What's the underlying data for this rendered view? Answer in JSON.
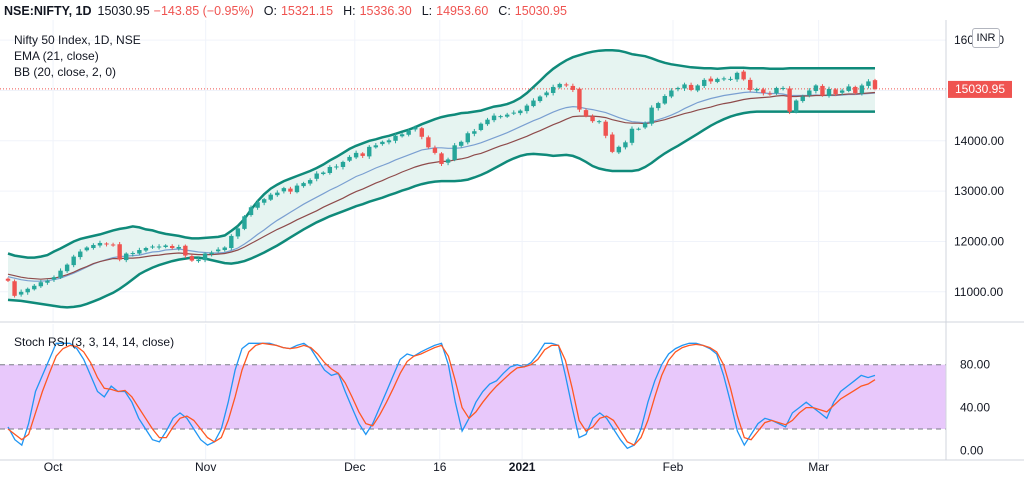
{
  "header": {
    "symbol": "NSE:NIFTY, 1D",
    "last": "15030.95",
    "change": "−143.85 (−0.95%)",
    "o_label": "O:",
    "o": "15321.15",
    "h_label": "H:",
    "h": "15336.30",
    "l_label": "L:",
    "l": "14953.60",
    "c_label": "C:",
    "c": "15030.95"
  },
  "legend": {
    "title": "Nifty 50 Index, 1D, NSE",
    "ema": "EMA (21, close)",
    "bb": "BB (20, close, 2, 0)"
  },
  "stoch_label": "Stoch RSI (3, 3, 14, 14, close)",
  "currency_button": "INR",
  "price_badge": "15030.95",
  "colors": {
    "up": "#26a69a",
    "down": "#ef5350",
    "bb": "#0f8a7a",
    "bb_fill": "#e6f4f1",
    "ema": "#8e4b4b",
    "basis": "#7a9fd1",
    "k": "#2196f3",
    "d": "#ff5722",
    "rsi_band": "#e8c8fb"
  },
  "chart_data": [
    {
      "type": "candlestick",
      "title": "Nifty 50 Index, 1D, NSE",
      "ylim": [
        10400,
        16400
      ],
      "yticks": [
        "11000.00",
        "12000.00",
        "13000.00",
        "14000.00",
        "15000.00",
        "16000.00"
      ],
      "x_labels": [
        "Oct",
        "Nov",
        "Dec",
        "16",
        "2021",
        "Feb",
        "Mar"
      ],
      "last_price": 15030.95,
      "close": [
        11220,
        10920,
        11000,
        11060,
        11120,
        11190,
        11220,
        11290,
        11420,
        11540,
        11700,
        11800,
        11880,
        11930,
        11970,
        11950,
        11920,
        11640,
        11760,
        11770,
        11830,
        11870,
        11900,
        11900,
        11920,
        11870,
        11890,
        11720,
        11620,
        11640,
        11760,
        11780,
        11840,
        11880,
        12110,
        12260,
        12500,
        12680,
        12780,
        12840,
        12930,
        12970,
        13060,
        12990,
        13110,
        13160,
        13220,
        13350,
        13370,
        13480,
        13490,
        13580,
        13680,
        13760,
        13700,
        13880,
        13910,
        13980,
        14010,
        14100,
        14130,
        14200,
        14260,
        14080,
        13870,
        13760,
        13540,
        13630,
        13910,
        13980,
        14150,
        14190,
        14340,
        14420,
        14500,
        14490,
        14520,
        14560,
        14600,
        14700,
        14800,
        14880,
        14960,
        15070,
        15130,
        15100,
        15010,
        14620,
        14490,
        14390,
        14390,
        14100,
        13780,
        13880,
        13970,
        14240,
        14240,
        14350,
        14660,
        14750,
        14890,
        15000,
        15050,
        15120,
        15010,
        15100,
        15210,
        15180,
        15230,
        15240,
        15230,
        15350,
        15220,
        15010,
        15030,
        14950,
        14920,
        15050,
        15050,
        14580,
        14800,
        14880,
        15000,
        15100,
        14900,
        15030,
        14930,
        15000,
        15080,
        14950,
        15100,
        15180,
        15030
      ],
      "ema": [
        11350,
        11320,
        11290,
        11270,
        11260,
        11250,
        11260,
        11270,
        11300,
        11340,
        11390,
        11450,
        11500,
        11560,
        11600,
        11630,
        11660,
        11660,
        11670,
        11670,
        11680,
        11700,
        11720,
        11730,
        11750,
        11760,
        11770,
        11760,
        11750,
        11740,
        11740,
        11740,
        11750,
        11760,
        11790,
        11830,
        11890,
        11960,
        12030,
        12100,
        12170,
        12240,
        12300,
        12360,
        12430,
        12490,
        12550,
        12610,
        12680,
        12740,
        12800,
        12860,
        12930,
        12990,
        13040,
        13100,
        13160,
        13210,
        13270,
        13320,
        13380,
        13430,
        13480,
        13520,
        13550,
        13570,
        13590,
        13590,
        13620,
        13640,
        13670,
        13720,
        13750,
        13800,
        13850,
        13900,
        13940,
        13990,
        14040,
        14090,
        14150,
        14200,
        14260,
        14320,
        14370,
        14430,
        14480,
        14490,
        14490,
        14490,
        14480,
        14460,
        14420,
        14390,
        14360,
        14350,
        14350,
        14340,
        14360,
        14390,
        14420,
        14460,
        14500,
        14540,
        14570,
        14610,
        14640,
        14670,
        14710,
        14740,
        14760,
        14790,
        14820,
        14840,
        14850,
        14860,
        14870,
        14890,
        14900,
        14880,
        14880,
        14890,
        14890,
        14900,
        14900,
        14910,
        14910,
        14920,
        14930,
        14930,
        14940,
        14950,
        14960
      ],
      "basis": [
        11300,
        11270,
        11240,
        11220,
        11210,
        11210,
        11220,
        11240,
        11270,
        11320,
        11370,
        11430,
        11490,
        11550,
        11600,
        11640,
        11680,
        11700,
        11710,
        11720,
        11730,
        11760,
        11790,
        11800,
        11830,
        11840,
        11850,
        11830,
        11810,
        11790,
        11780,
        11770,
        11770,
        11780,
        11820,
        11870,
        11950,
        12040,
        12140,
        12230,
        12330,
        12420,
        12500,
        12580,
        12660,
        12740,
        12810,
        12880,
        12950,
        13020,
        13080,
        13150,
        13220,
        13290,
        13340,
        13400,
        13460,
        13510,
        13560,
        13620,
        13670,
        13720,
        13770,
        13820,
        13840,
        13860,
        13860,
        13850,
        13850,
        13860,
        13890,
        13920,
        13960,
        14010,
        14060,
        14110,
        14160,
        14220,
        14280,
        14340,
        14400,
        14450,
        14510,
        14570,
        14620,
        14660,
        14680,
        14670,
        14640,
        14620,
        14590,
        14560,
        14510,
        14460,
        14420,
        14380,
        14370,
        14360,
        14380,
        14420,
        14460,
        14510,
        14570,
        14640,
        14700,
        14760,
        14800,
        14840,
        14870,
        14900,
        14920,
        14940,
        14960,
        14970,
        14960,
        14950,
        14940,
        14940,
        14930,
        14900,
        14900,
        14900,
        14900,
        14910,
        14900,
        14900,
        14900,
        14910,
        14920,
        14920,
        14930,
        14940,
        14950
      ],
      "bb_upper": [
        11760,
        11720,
        11700,
        11680,
        11680,
        11700,
        11730,
        11800,
        11860,
        11930,
        12000,
        12050,
        12080,
        12110,
        12140,
        12180,
        12220,
        12250,
        12270,
        12300,
        12280,
        12240,
        12220,
        12180,
        12150,
        12130,
        12110,
        12080,
        12060,
        12060,
        12070,
        12080,
        12090,
        12120,
        12210,
        12310,
        12450,
        12630,
        12800,
        12940,
        13050,
        13130,
        13200,
        13250,
        13300,
        13350,
        13400,
        13460,
        13530,
        13610,
        13680,
        13760,
        13840,
        13900,
        13950,
        14000,
        14030,
        14070,
        14100,
        14140,
        14180,
        14220,
        14270,
        14330,
        14380,
        14430,
        14470,
        14500,
        14520,
        14550,
        14560,
        14580,
        14600,
        14640,
        14680,
        14700,
        14730,
        14780,
        14850,
        14950,
        15070,
        15190,
        15320,
        15430,
        15520,
        15600,
        15660,
        15700,
        15740,
        15770,
        15790,
        15800,
        15800,
        15790,
        15760,
        15720,
        15700,
        15680,
        15640,
        15590,
        15550,
        15520,
        15500,
        15480,
        15460,
        15450,
        15440,
        15440,
        15430,
        15440,
        15450,
        15450,
        15450,
        15440,
        15440,
        15440,
        15430,
        15430,
        15430,
        15440,
        15440,
        15440,
        15440,
        15440,
        15440,
        15440,
        15440,
        15440,
        15440,
        15440,
        15440,
        15440,
        15440
      ],
      "bb_lower": [
        10840,
        10830,
        10820,
        10800,
        10780,
        10760,
        10740,
        10720,
        10700,
        10690,
        10700,
        10720,
        10760,
        10810,
        10860,
        10920,
        10980,
        11060,
        11150,
        11250,
        11350,
        11420,
        11480,
        11530,
        11570,
        11610,
        11640,
        11660,
        11680,
        11680,
        11660,
        11630,
        11600,
        11570,
        11560,
        11580,
        11610,
        11660,
        11720,
        11780,
        11850,
        11920,
        12000,
        12080,
        12160,
        12240,
        12310,
        12380,
        12440,
        12500,
        12550,
        12600,
        12650,
        12700,
        12740,
        12790,
        12830,
        12870,
        12920,
        12960,
        13010,
        13050,
        13100,
        13140,
        13170,
        13190,
        13200,
        13200,
        13200,
        13210,
        13230,
        13270,
        13320,
        13380,
        13450,
        13520,
        13590,
        13650,
        13700,
        13730,
        13740,
        13730,
        13720,
        13700,
        13710,
        13720,
        13700,
        13650,
        13580,
        13500,
        13450,
        13420,
        13400,
        13400,
        13400,
        13400,
        13420,
        13480,
        13560,
        13660,
        13750,
        13830,
        13900,
        13980,
        14060,
        14140,
        14220,
        14300,
        14370,
        14430,
        14480,
        14520,
        14550,
        14570,
        14580,
        14580,
        14580,
        14580,
        14580,
        14580,
        14580,
        14580,
        14580,
        14580,
        14580,
        14580,
        14580,
        14580,
        14580,
        14580,
        14580,
        14580,
        14580
      ]
    },
    {
      "type": "line",
      "title": "Stoch RSI (3, 3, 14, 14, close)",
      "ylim": [
        -8,
        118
      ],
      "yticks": [
        "0.00",
        "40.00",
        "80.00"
      ],
      "bands": [
        20,
        80
      ],
      "series": [
        {
          "name": "K",
          "values": [
            22,
            10,
            5,
            25,
            55,
            70,
            85,
            100,
            100,
            100,
            95,
            85,
            70,
            55,
            50,
            60,
            55,
            55,
            45,
            30,
            20,
            10,
            8,
            18,
            30,
            35,
            30,
            20,
            10,
            5,
            8,
            20,
            45,
            75,
            95,
            100,
            100,
            100,
            100,
            98,
            96,
            95,
            98,
            100,
            95,
            85,
            75,
            70,
            72,
            55,
            40,
            25,
            15,
            25,
            40,
            55,
            70,
            85,
            90,
            88,
            92,
            95,
            98,
            100,
            80,
            45,
            18,
            30,
            45,
            55,
            62,
            65,
            72,
            78,
            80,
            78,
            82,
            90,
            100,
            100,
            98,
            70,
            40,
            12,
            15,
            30,
            35,
            30,
            20,
            10,
            2,
            5,
            20,
            45,
            65,
            80,
            90,
            95,
            98,
            100,
            100,
            98,
            95,
            90,
            70,
            45,
            18,
            5,
            15,
            25,
            30,
            28,
            25,
            22,
            35,
            40,
            45,
            40,
            35,
            30,
            45,
            55,
            60,
            65,
            70,
            68,
            70
          ]
        },
        {
          "name": "D",
          "values": [
            20,
            15,
            10,
            15,
            35,
            55,
            72,
            88,
            95,
            98,
            97,
            92,
            82,
            68,
            58,
            57,
            55,
            56,
            50,
            40,
            30,
            20,
            12,
            12,
            22,
            30,
            32,
            28,
            20,
            12,
            8,
            12,
            28,
            50,
            75,
            92,
            98,
            100,
            99,
            98,
            96,
            95,
            96,
            98,
            96,
            90,
            82,
            76,
            72,
            63,
            50,
            36,
            25,
            23,
            33,
            45,
            58,
            72,
            83,
            88,
            90,
            93,
            96,
            98,
            88,
            65,
            40,
            30,
            36,
            45,
            53,
            60,
            66,
            72,
            77,
            78,
            80,
            85,
            94,
            98,
            98,
            84,
            58,
            28,
            18,
            22,
            30,
            32,
            28,
            18,
            8,
            5,
            12,
            28,
            50,
            70,
            84,
            92,
            96,
            98,
            99,
            98,
            96,
            92,
            80,
            58,
            32,
            12,
            10,
            18,
            26,
            28,
            26,
            24,
            28,
            35,
            40,
            40,
            38,
            36,
            42,
            48,
            52,
            56,
            60,
            62,
            66
          ]
        }
      ]
    }
  ]
}
